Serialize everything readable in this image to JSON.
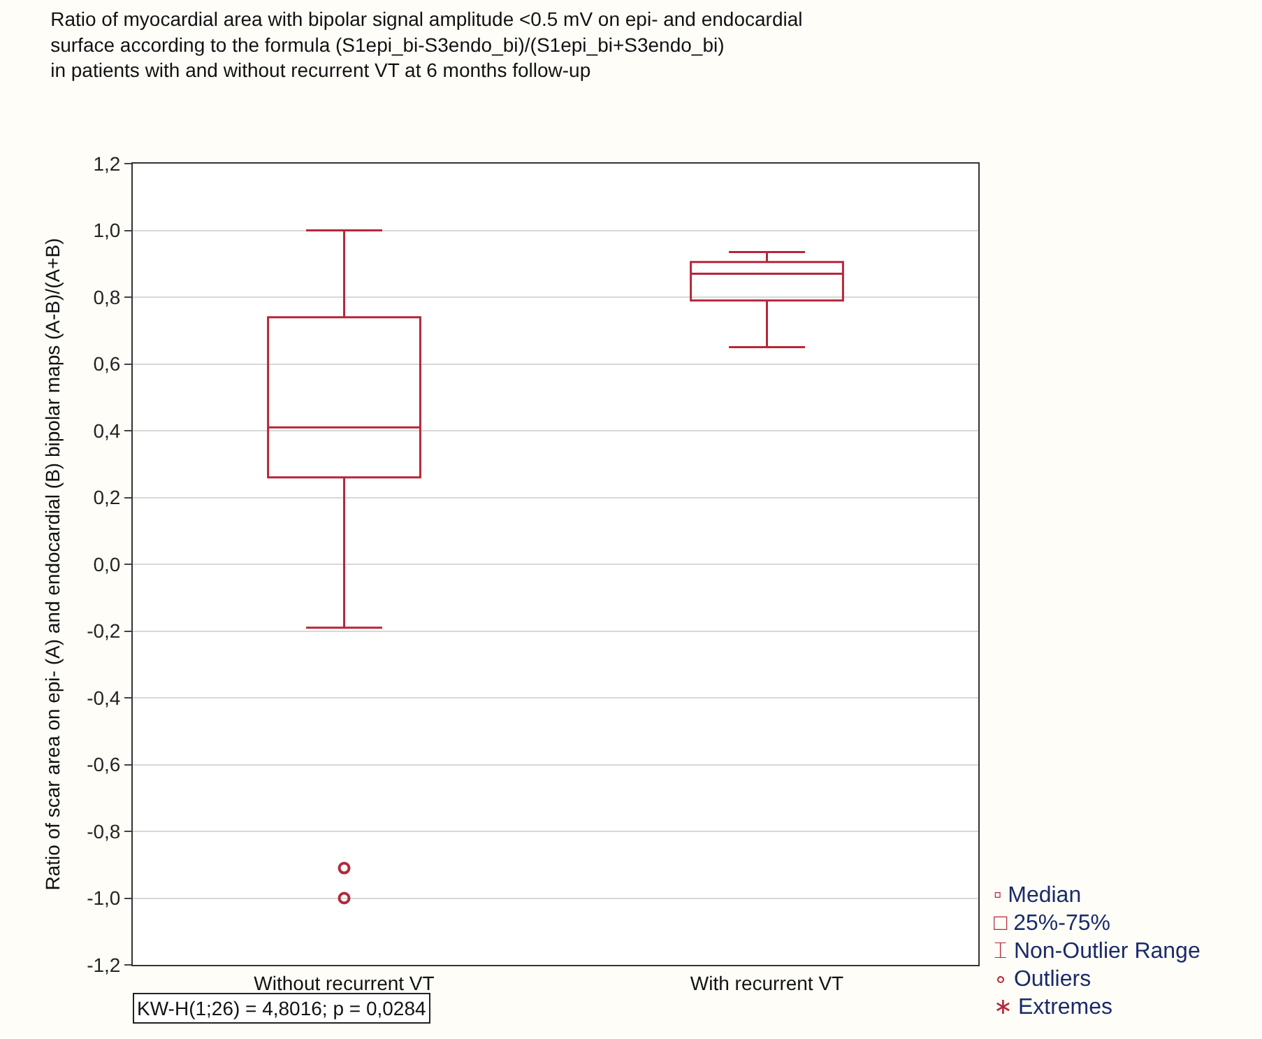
{
  "chart_data": {
    "type": "box",
    "title": "Ratio of myocardial area with bipolar signal amplitude <0.5 mV on epi- and endocardial\nsurface according to the formula (S1epi_bi-S3endo_bi)/(S1epi_bi+S3endo_bi)\nin patients with and without recurrent VT at 6 months follow-up",
    "ylabel": "Ratio of scar area on epi- (A) and endocardial (B) bipolar maps (A-B)/(A+B)",
    "categories": [
      "Without recurrent VT",
      "With recurrent VT"
    ],
    "series": [
      {
        "color": "#b5273a",
        "boxes": [
          {
            "low": -0.19,
            "q1": 0.26,
            "median": 0.41,
            "q3": 0.74,
            "high": 1.0,
            "outliers": [
              -0.91,
              -1.0
            ]
          },
          {
            "low": 0.65,
            "q1": 0.79,
            "median": 0.87,
            "q3": 0.905,
            "high": 0.935
          }
        ]
      }
    ],
    "ylim": [
      -1.2,
      1.2
    ],
    "yticks": [
      {
        "value": -1.2,
        "label": "-1,2"
      },
      {
        "value": -1.0,
        "label": "-1,0"
      },
      {
        "value": -0.8,
        "label": "-0,8"
      },
      {
        "value": -0.6,
        "label": "-0,6"
      },
      {
        "value": -0.4,
        "label": "-0,4"
      },
      {
        "value": -0.2,
        "label": "-0,2"
      },
      {
        "value": 0,
        "label": "0,0"
      },
      {
        "value": 0.2,
        "label": "0,2"
      },
      {
        "value": 0.4,
        "label": "0,4"
      },
      {
        "value": 0.6,
        "label": "0,6"
      },
      {
        "value": 0.8,
        "label": "0,8"
      },
      {
        "value": 1.0,
        "label": "1,0"
      },
      {
        "value": 1.2,
        "label": "1,2"
      }
    ],
    "grid": "y",
    "annotations": [
      "KW-H(1;26) = 4,8016; p = 0,0284",
      "▫ Median",
      "□ 25%-75%",
      "⌶ Non-Outlier Range",
      "∘ Outliers",
      "∗ Extremes"
    ]
  }
}
